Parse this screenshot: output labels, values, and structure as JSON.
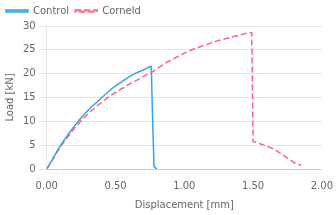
{
  "chart_data": {
    "type": "line",
    "xlabel": "Displacement [mm]",
    "ylabel": "Load [kN]",
    "xlim": [
      0.0,
      2.0
    ],
    "ylim": [
      0,
      30
    ],
    "xticks": [
      {
        "value": 0.0,
        "label": "0.00"
      },
      {
        "value": 0.5,
        "label": "0.50"
      },
      {
        "value": 1.0,
        "label": "1.00"
      },
      {
        "value": 1.5,
        "label": "1.50"
      },
      {
        "value": 2.0,
        "label": "2.00"
      }
    ],
    "yticks": [
      0,
      5,
      10,
      15,
      20,
      25,
      30
    ],
    "grid": "y",
    "legend": "upper left",
    "series": [
      {
        "name": "Control",
        "line_style": "solid",
        "marker": "none",
        "x": [
          0.0,
          0.04,
          0.08,
          0.12,
          0.16,
          0.2,
          0.24,
          0.28,
          0.32,
          0.36,
          0.4,
          0.44,
          0.48,
          0.52,
          0.56,
          0.6,
          0.64,
          0.68,
          0.72,
          0.75,
          0.76,
          0.77,
          0.78,
          0.8
        ],
        "values": [
          0.0,
          1.9,
          4.0,
          5.8,
          7.4,
          9.0,
          10.4,
          11.7,
          12.9,
          13.9,
          15.0,
          16.0,
          17.0,
          17.8,
          18.6,
          19.4,
          20.0,
          20.5,
          21.0,
          21.5,
          21.5,
          10.0,
          0.5,
          0.0
        ]
      },
      {
        "name": "Corneld",
        "line_style": "dashed",
        "marker": "none",
        "x": [
          0.0,
          0.04,
          0.08,
          0.12,
          0.16,
          0.2,
          0.24,
          0.28,
          0.32,
          0.36,
          0.4,
          0.44,
          0.48,
          0.52,
          0.56,
          0.6,
          0.64,
          0.68,
          0.72,
          0.76,
          0.8,
          0.84,
          0.88,
          0.92,
          0.96,
          1.0,
          1.04,
          1.08,
          1.12,
          1.16,
          1.2,
          1.24,
          1.28,
          1.32,
          1.36,
          1.4,
          1.44,
          1.475,
          1.49,
          1.5,
          1.52,
          1.55,
          1.6,
          1.65,
          1.7,
          1.75,
          1.8,
          1.85
        ],
        "values": [
          0.0,
          1.8,
          3.8,
          5.5,
          7.0,
          8.5,
          9.8,
          11.0,
          12.1,
          13.1,
          14.0,
          14.9,
          15.7,
          16.4,
          17.1,
          17.8,
          18.4,
          19.0,
          19.7,
          20.2,
          21.0,
          21.8,
          22.5,
          23.1,
          23.7,
          24.3,
          24.8,
          25.3,
          25.7,
          26.1,
          26.5,
          26.9,
          27.2,
          27.5,
          27.8,
          28.1,
          28.4,
          28.6,
          28.6,
          5.8,
          5.6,
          5.3,
          4.8,
          4.2,
          3.3,
          2.3,
          1.3,
          0.8
        ]
      }
    ]
  }
}
